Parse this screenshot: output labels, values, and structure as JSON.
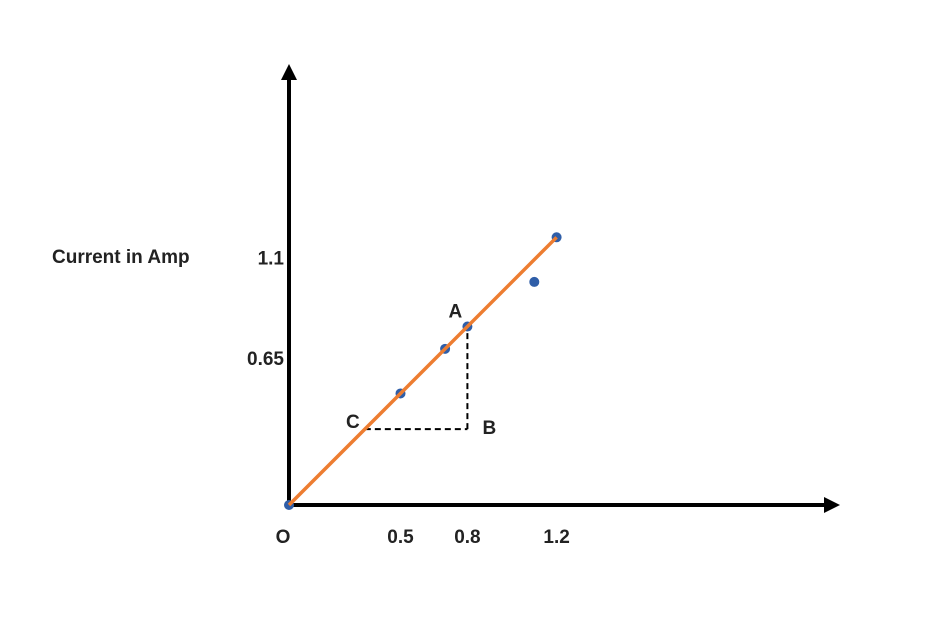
{
  "chart_data": {
    "type": "scatter",
    "y_label": "Current in Amp",
    "x": [
      0,
      0.5,
      0.7,
      0.8,
      1.1,
      1.2
    ],
    "y": [
      0,
      0.5,
      0.7,
      0.8,
      1.0,
      1.2
    ],
    "color": "#2f5ea8",
    "fit_line": {
      "x": [
        0,
        1.2
      ],
      "y": [
        0,
        1.2
      ],
      "color": "#ed7d31"
    },
    "annotations": [
      {
        "text": "A",
        "x": 0.8,
        "y": 0.8
      },
      {
        "text": "B",
        "x": 0.8,
        "y": 0.34
      },
      {
        "text": "C",
        "x": 0.34,
        "y": 0.34
      }
    ],
    "xlim": [
      0,
      2.5
    ],
    "ylim": [
      0,
      1.95
    ],
    "xticks": [
      {
        "value": 0,
        "label": "O"
      },
      0.5,
      0.8,
      1.2
    ],
    "yticks": [
      0.65,
      1.1
    ],
    "grid": false
  }
}
